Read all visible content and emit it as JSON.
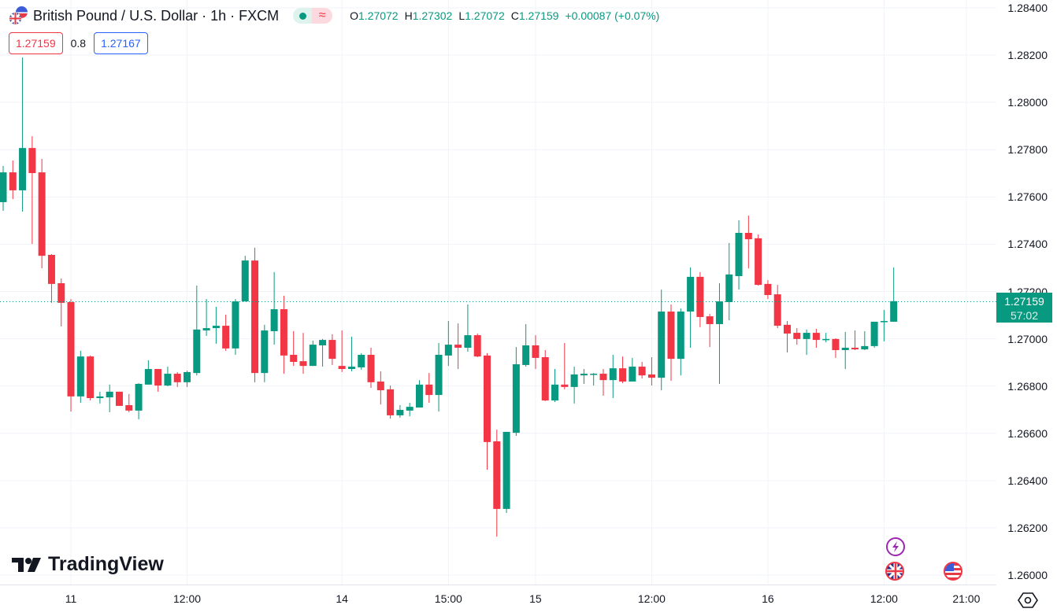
{
  "header": {
    "title": "British Pound / U.S. Dollar · 1h · FXCM",
    "status_icon": "market-open-dot",
    "indicator_icon": "≈",
    "ohlc": {
      "o_label": "O",
      "o": "1.27072",
      "h_label": "H",
      "h": "1.27302",
      "l_label": "L",
      "l": "1.27072",
      "c_label": "C",
      "c": "1.27159",
      "change": "+0.00087 (+0.07%)"
    },
    "sell_price": "1.27159",
    "spread": "0.8",
    "buy_price": "1.27167"
  },
  "price_tag": {
    "price": "1.27159",
    "countdown": "57:02"
  },
  "logo": {
    "text": "TradingView"
  },
  "colors": {
    "up": "#089981",
    "down": "#f23645",
    "grid": "#f0f3fa",
    "buy": "#2962ff"
  },
  "chart_data": {
    "type": "candlestick",
    "title": "British Pound / U.S. Dollar · 1h · FXCM",
    "ylim": [
      1.26,
      1.284
    ],
    "y_ticks": [
      "1.28400",
      "1.28200",
      "1.28000",
      "1.27800",
      "1.27600",
      "1.27400",
      "1.27200",
      "1.27000",
      "1.26800",
      "1.26600",
      "1.26400",
      "1.26200",
      "1.26000"
    ],
    "x_labels": [
      "11",
      "12:00",
      "14",
      "15:00",
      "15",
      "12:00",
      "16",
      "12:00",
      "21:00"
    ],
    "x_label_candle_index": [
      7.0,
      19.0,
      35.0,
      46.0,
      55.0,
      67.0,
      79.0,
      91.0,
      99.5
    ],
    "last_price": 1.27159,
    "candles": [
      [
        1.27578,
        1.27731,
        1.27541,
        1.27704
      ],
      [
        1.27704,
        1.27754,
        1.27591,
        1.27628
      ],
      [
        1.27628,
        1.2819,
        1.27538,
        1.27807
      ],
      [
        1.27807,
        1.27857,
        1.27401,
        1.27701
      ],
      [
        1.27704,
        1.27761,
        1.27298,
        1.27351
      ],
      [
        1.27355,
        1.27358,
        1.27152,
        1.27232
      ],
      [
        1.27235,
        1.27255,
        1.27052,
        1.27152
      ],
      [
        1.27155,
        1.27168,
        1.26692,
        1.26756
      ],
      [
        1.26756,
        1.26949,
        1.26729,
        1.26925
      ],
      [
        1.26925,
        1.26929,
        1.26739,
        1.26749
      ],
      [
        1.26749,
        1.26776,
        1.26726,
        1.26756
      ],
      [
        1.26752,
        1.26806,
        1.26689,
        1.26776
      ],
      [
        1.26776,
        1.26776,
        1.26716,
        1.26716
      ],
      [
        1.26719,
        1.26766,
        1.26689,
        1.26696
      ],
      [
        1.26696,
        1.26812,
        1.26659,
        1.26809
      ],
      [
        1.26806,
        1.26909,
        1.26806,
        1.26872
      ],
      [
        1.26872,
        1.26872,
        1.26776,
        1.26802
      ],
      [
        1.26802,
        1.26882,
        1.26799,
        1.26852
      ],
      [
        1.26852,
        1.26859,
        1.26796,
        1.26816
      ],
      [
        1.26816,
        1.26865,
        1.26796,
        1.26859
      ],
      [
        1.26855,
        1.27225,
        1.26845,
        1.27039
      ],
      [
        1.27035,
        1.27168,
        1.27012,
        1.27045
      ],
      [
        1.27045,
        1.27135,
        1.26979,
        1.27055
      ],
      [
        1.27055,
        1.27102,
        1.26949,
        1.26959
      ],
      [
        1.26959,
        1.27168,
        1.26932,
        1.27158
      ],
      [
        1.27158,
        1.27351,
        1.27158,
        1.27331
      ],
      [
        1.27331,
        1.27385,
        1.26816,
        1.26855
      ],
      [
        1.26855,
        1.27059,
        1.26816,
        1.27035
      ],
      [
        1.27032,
        1.27282,
        1.26975,
        1.27125
      ],
      [
        1.27125,
        1.27182,
        1.26852,
        1.26929
      ],
      [
        1.26932,
        1.27032,
        1.26885,
        1.26902
      ],
      [
        1.26905,
        1.27025,
        1.26852,
        1.26885
      ],
      [
        1.26885,
        1.26992,
        1.26885,
        1.26975
      ],
      [
        1.26972,
        1.26999,
        1.26882,
        1.26995
      ],
      [
        1.26995,
        1.27019,
        1.26889,
        1.26915
      ],
      [
        1.26885,
        1.27035,
        1.26859,
        1.26872
      ],
      [
        1.26872,
        1.27009,
        1.26862,
        1.26882
      ],
      [
        1.26879,
        1.26939,
        1.26869,
        1.26932
      ],
      [
        1.26932,
        1.26962,
        1.26792,
        1.26816
      ],
      [
        1.26819,
        1.26862,
        1.26722,
        1.26782
      ],
      [
        1.26786,
        1.26802,
        1.26662,
        1.26676
      ],
      [
        1.26676,
        1.26719,
        1.26666,
        1.26699
      ],
      [
        1.26696,
        1.26729,
        1.26672,
        1.26712
      ],
      [
        1.26709,
        1.26825,
        1.26709,
        1.26806
      ],
      [
        1.26806,
        1.26855,
        1.26729,
        1.26762
      ],
      [
        1.26762,
        1.26982,
        1.26692,
        1.26932
      ],
      [
        1.26929,
        1.27075,
        1.26885,
        1.26975
      ],
      [
        1.26975,
        1.27065,
        1.26872,
        1.26962
      ],
      [
        1.26962,
        1.27145,
        1.26945,
        1.27015
      ],
      [
        1.27015,
        1.27022,
        1.26922,
        1.26925
      ],
      [
        1.26929,
        1.26939,
        1.26446,
        1.26563
      ],
      [
        1.26566,
        1.26616,
        1.26163,
        1.2628
      ],
      [
        1.2628,
        1.26606,
        1.26263,
        1.26606
      ],
      [
        1.26602,
        1.26965,
        1.26589,
        1.26892
      ],
      [
        1.26889,
        1.27062,
        1.26882,
        1.26972
      ],
      [
        1.26972,
        1.27015,
        1.26872,
        1.26919
      ],
      [
        1.26922,
        1.26952,
        1.26736,
        1.26739
      ],
      [
        1.26739,
        1.26872,
        1.26732,
        1.26806
      ],
      [
        1.26806,
        1.26982,
        1.26786,
        1.26796
      ],
      [
        1.26796,
        1.26882,
        1.26726,
        1.26849
      ],
      [
        1.26845,
        1.26872,
        1.26809,
        1.26852
      ],
      [
        1.26849,
        1.26855,
        1.26802,
        1.26852
      ],
      [
        1.26852,
        1.26872,
        1.26759,
        1.26825
      ],
      [
        1.26825,
        1.26932,
        1.26749,
        1.26875
      ],
      [
        1.26875,
        1.26925,
        1.26812,
        1.26819
      ],
      [
        1.26819,
        1.26919,
        1.26819,
        1.26882
      ],
      [
        1.26882,
        1.26902,
        1.26832,
        1.26845
      ],
      [
        1.26849,
        1.26922,
        1.26802,
        1.26835
      ],
      [
        1.26835,
        1.27208,
        1.26782,
        1.27115
      ],
      [
        1.27115,
        1.27145,
        1.26822,
        1.26915
      ],
      [
        1.26915,
        1.27128,
        1.26845,
        1.27115
      ],
      [
        1.27115,
        1.27302,
        1.26962,
        1.27262
      ],
      [
        1.27262,
        1.27282,
        1.27049,
        1.27092
      ],
      [
        1.27095,
        1.27105,
        1.26965,
        1.27062
      ],
      [
        1.27062,
        1.27235,
        1.26809,
        1.27158
      ],
      [
        1.27155,
        1.27405,
        1.27078,
        1.27272
      ],
      [
        1.27265,
        1.27501,
        1.27208,
        1.27448
      ],
      [
        1.27448,
        1.27521,
        1.27298,
        1.27421
      ],
      [
        1.27425,
        1.27441,
        1.27225,
        1.27228
      ],
      [
        1.27232,
        1.27248,
        1.27168,
        1.27185
      ],
      [
        1.27188,
        1.27228,
        1.27045,
        1.27055
      ],
      [
        1.27059,
        1.27075,
        1.26942,
        1.27022
      ],
      [
        1.27025,
        1.27045,
        1.26975,
        1.26999
      ],
      [
        1.26999,
        1.27039,
        1.26932,
        1.27025
      ],
      [
        1.27025,
        1.27042,
        1.26962,
        1.26995
      ],
      [
        1.26995,
        1.27025,
        1.26985,
        1.26999
      ],
      [
        1.26999,
        1.27002,
        1.26919,
        1.26952
      ],
      [
        1.26952,
        1.27029,
        1.26872,
        1.26962
      ],
      [
        1.26962,
        1.27035,
        1.26952,
        1.26955
      ],
      [
        1.26955,
        1.27032,
        1.26952,
        1.26969
      ],
      [
        1.26969,
        1.27072,
        1.26962,
        1.27072
      ],
      [
        1.27072,
        1.27122,
        1.26989,
        1.27075
      ],
      [
        1.27072,
        1.27302,
        1.27072,
        1.27159
      ]
    ]
  }
}
